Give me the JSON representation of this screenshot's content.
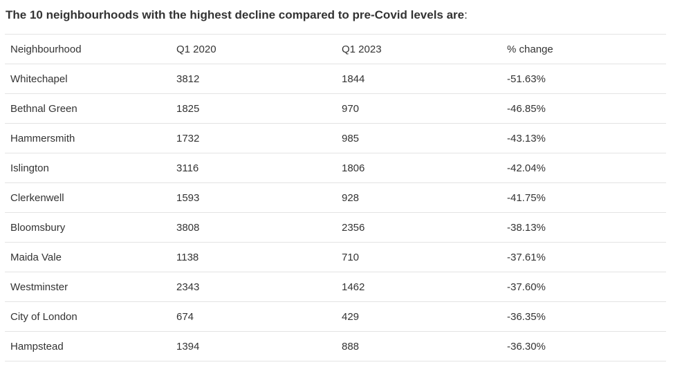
{
  "heading": {
    "bold": "The 10 neighbourhoods with the highest decline compared to pre-Covid levels are",
    "tail": ":"
  },
  "table": {
    "headers": [
      "Neighbourhood",
      "Q1 2020",
      "Q1 2023",
      "% change"
    ],
    "rows": [
      [
        "Whitechapel",
        "3812",
        "1844",
        "-51.63%"
      ],
      [
        "Bethnal Green",
        "1825",
        "970",
        "-46.85%"
      ],
      [
        "Hammersmith",
        "1732",
        "985",
        "-43.13%"
      ],
      [
        "Islington",
        "3116",
        "1806",
        "-42.04%"
      ],
      [
        "Clerkenwell",
        "1593",
        "928",
        "-41.75%"
      ],
      [
        "Bloomsbury",
        "3808",
        "2356",
        "-38.13%"
      ],
      [
        "Maida Vale",
        "1138",
        "710",
        "-37.61%"
      ],
      [
        "Westminster",
        "2343",
        "1462",
        "-37.60%"
      ],
      [
        "City of London",
        "674",
        "429",
        "-36.35%"
      ],
      [
        "Hampstead",
        "1394",
        "888",
        "-36.30%"
      ]
    ]
  }
}
